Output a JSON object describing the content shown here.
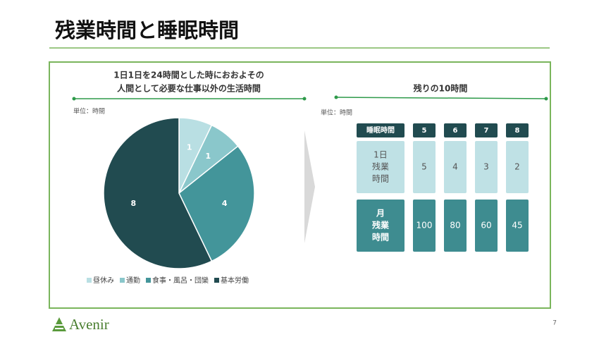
{
  "header": {
    "title": "残業時間と睡眠時間"
  },
  "chart_data": {
    "type": "pie",
    "title": [
      "1日1日を24時間とした時におおよその",
      "人間として必要な仕事以外の生活時間"
    ],
    "unit": "単位：時間",
    "categories": [
      "昼休み",
      "通勤",
      "食事・風呂・団欒",
      "基本労働"
    ],
    "values": [
      1,
      1,
      4,
      8
    ],
    "colors": [
      "#b9dfe3",
      "#8ac7cb",
      "#43959a",
      "#214b50"
    ]
  },
  "table": {
    "title": "残りの10時間",
    "unit": "単位：時間",
    "header": [
      "睡眠時間",
      5,
      6,
      7,
      8
    ],
    "rows": [
      {
        "label": [
          "1日",
          "残業",
          "時間"
        ],
        "values": [
          5,
          4,
          3,
          2
        ]
      },
      {
        "label": [
          "月",
          "残業",
          "時間"
        ],
        "values": [
          100,
          80,
          60,
          45
        ]
      }
    ]
  },
  "footer": {
    "logo": "Avenir",
    "page": 7
  }
}
